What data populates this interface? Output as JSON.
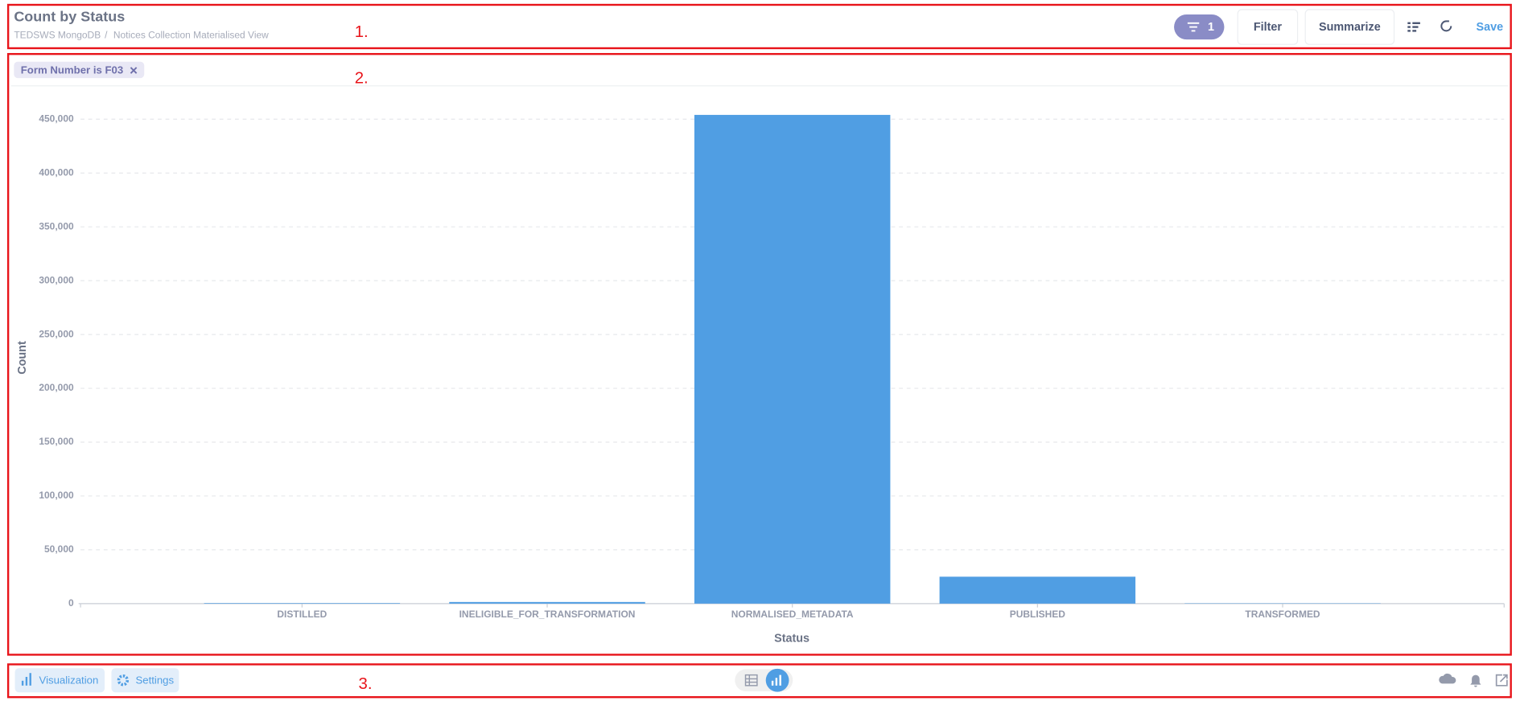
{
  "header": {
    "title": "Count by Status",
    "breadcrumb": [
      "TEDSWS MongoDB",
      "Notices Collection Materialised View"
    ],
    "breadcrumb_separator": "/",
    "filter_count": "1",
    "buttons": [
      "Filter",
      "Summarize"
    ],
    "save": "Save"
  },
  "filter_chip": "Form Number is F03",
  "annotations": [
    "1.",
    "2.",
    "3."
  ],
  "footer": {
    "visualization": "Visualization",
    "settings": "Settings"
  },
  "chart_data": {
    "type": "bar",
    "x_label": "Status",
    "y_label": "Count",
    "categories": [
      "DISTILLED",
      "INELIGIBLE_FOR_TRANSFORMATION",
      "NORMALISED_METADATA",
      "PUBLISHED",
      "TRANSFORMED"
    ],
    "values": [
      500,
      1500,
      454000,
      25000,
      300
    ],
    "color": "#509ee3",
    "ylim": [
      0,
      472500
    ],
    "yticks": [
      0,
      {
        "value": 50000,
        "label": "50,000"
      },
      {
        "value": 100000,
        "label": "100,000"
      },
      {
        "value": 150000,
        "label": "150,000"
      },
      {
        "value": 200000,
        "label": "200,000"
      },
      {
        "value": 250000,
        "label": "250,000"
      },
      {
        "value": 300000,
        "label": "300,000"
      },
      {
        "value": 350000,
        "label": "350,000"
      },
      {
        "value": 400000,
        "label": "400,000"
      },
      {
        "value": 450000,
        "label": "450,000"
      }
    ],
    "grid": true
  }
}
